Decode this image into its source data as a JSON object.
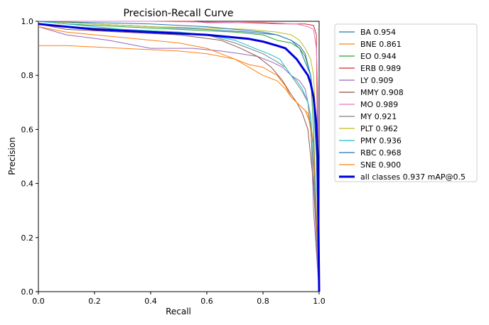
{
  "chart_data": {
    "type": "line",
    "title": "Precision-Recall Curve",
    "xlabel": "Recall",
    "ylabel": "Precision",
    "xlim": [
      0,
      1
    ],
    "ylim": [
      0,
      1
    ],
    "xticks": [
      "0.0",
      "0.2",
      "0.4",
      "0.6",
      "0.8",
      "1.0"
    ],
    "yticks": [
      "0.0",
      "0.2",
      "0.4",
      "0.6",
      "0.8",
      "1.0"
    ],
    "legend_position": "outside-right",
    "series": [
      {
        "name": "BA",
        "label": "BA 0.954",
        "color": "#1f77b4",
        "x": [
          0,
          0.05,
          0.2,
          0.4,
          0.6,
          0.75,
          0.85,
          0.9,
          0.93,
          0.95,
          0.97,
          0.98,
          0.99,
          1.0
        ],
        "y": [
          1.0,
          1.0,
          0.99,
          0.98,
          0.97,
          0.96,
          0.95,
          0.93,
          0.9,
          0.85,
          0.8,
          0.7,
          0.55,
          0.0
        ]
      },
      {
        "name": "BNE",
        "label": "BNE 0.861",
        "color": "#ff7f0e",
        "x": [
          0,
          0.02,
          0.1,
          0.3,
          0.5,
          0.6,
          0.65,
          0.7,
          0.75,
          0.8,
          0.85,
          0.88,
          0.9,
          0.92,
          0.95,
          0.97,
          0.98,
          1.0
        ],
        "y": [
          0.91,
          0.91,
          0.91,
          0.9,
          0.89,
          0.88,
          0.87,
          0.86,
          0.83,
          0.8,
          0.78,
          0.75,
          0.72,
          0.7,
          0.67,
          0.62,
          0.55,
          0.0
        ]
      },
      {
        "name": "EO",
        "label": "EO 0.944",
        "color": "#2ca02c",
        "x": [
          0,
          0.1,
          0.3,
          0.5,
          0.7,
          0.8,
          0.85,
          0.9,
          0.93,
          0.95,
          0.97,
          0.98,
          1.0
        ],
        "y": [
          1.0,
          0.99,
          0.98,
          0.97,
          0.96,
          0.95,
          0.93,
          0.92,
          0.9,
          0.87,
          0.8,
          0.6,
          0.0
        ]
      },
      {
        "name": "ERB",
        "label": "ERB 0.989",
        "color": "#d62728",
        "x": [
          0,
          0.3,
          0.55,
          0.6,
          0.8,
          0.9,
          0.95,
          0.98,
          0.99,
          1.0
        ],
        "y": [
          1.0,
          1.0,
          1.0,
          0.995,
          0.995,
          0.99,
          0.99,
          0.985,
          0.95,
          0.0
        ]
      },
      {
        "name": "LY",
        "label": "LY 0.909",
        "color": "#9467bd",
        "x": [
          0,
          0.1,
          0.25,
          0.4,
          0.55,
          0.65,
          0.72,
          0.78,
          0.83,
          0.87,
          0.9,
          0.93,
          0.95,
          0.97,
          0.98,
          1.0
        ],
        "y": [
          0.98,
          0.95,
          0.93,
          0.9,
          0.9,
          0.89,
          0.88,
          0.87,
          0.85,
          0.83,
          0.8,
          0.78,
          0.75,
          0.65,
          0.3,
          0.0
        ]
      },
      {
        "name": "MMY",
        "label": "MMY 0.908",
        "color": "#8c564b",
        "x": [
          0,
          0.1,
          0.3,
          0.5,
          0.65,
          0.72,
          0.78,
          0.83,
          0.87,
          0.9,
          0.92,
          0.94,
          0.96,
          0.97,
          0.98,
          1.0
        ],
        "y": [
          0.99,
          0.97,
          0.96,
          0.95,
          0.93,
          0.9,
          0.87,
          0.83,
          0.78,
          0.73,
          0.7,
          0.66,
          0.6,
          0.5,
          0.4,
          0.0
        ]
      },
      {
        "name": "MO",
        "label": "MO 0.989",
        "color": "#e377c2",
        "x": [
          0,
          0.4,
          0.7,
          0.85,
          0.92,
          0.96,
          0.98,
          0.99,
          0.995,
          1.0
        ],
        "y": [
          1.0,
          1.0,
          0.995,
          0.99,
          0.99,
          0.98,
          0.97,
          0.9,
          0.75,
          0.0
        ]
      },
      {
        "name": "MY",
        "label": "MY 0.921",
        "color": "#7f7f7f",
        "x": [
          0,
          0.1,
          0.3,
          0.5,
          0.6,
          0.7,
          0.75,
          0.8,
          0.85,
          0.88,
          0.9,
          0.92,
          0.94,
          0.96,
          0.97,
          0.98,
          1.0
        ],
        "y": [
          0.99,
          0.98,
          0.97,
          0.96,
          0.95,
          0.92,
          0.9,
          0.88,
          0.85,
          0.83,
          0.8,
          0.77,
          0.74,
          0.7,
          0.6,
          0.45,
          0.0
        ]
      },
      {
        "name": "PLT",
        "label": "PLT 0.962",
        "color": "#bcbd22",
        "x": [
          0,
          0.2,
          0.4,
          0.6,
          0.75,
          0.85,
          0.9,
          0.93,
          0.95,
          0.97,
          0.98,
          0.99,
          1.0
        ],
        "y": [
          1.0,
          0.99,
          0.98,
          0.975,
          0.97,
          0.96,
          0.95,
          0.93,
          0.9,
          0.86,
          0.8,
          0.6,
          0.0
        ]
      },
      {
        "name": "PMY",
        "label": "PMY 0.936",
        "color": "#17becf",
        "x": [
          0,
          0.1,
          0.3,
          0.5,
          0.6,
          0.7,
          0.77,
          0.82,
          0.86,
          0.88,
          0.9,
          0.92,
          0.94,
          0.96,
          0.97,
          0.98,
          1.0
        ],
        "y": [
          1.0,
          0.99,
          0.97,
          0.96,
          0.95,
          0.93,
          0.9,
          0.88,
          0.86,
          0.83,
          0.8,
          0.78,
          0.75,
          0.7,
          0.65,
          0.5,
          0.0
        ]
      },
      {
        "name": "RBC",
        "label": "RBC 0.968",
        "color": "#1f77b4",
        "x": [
          0,
          0.2,
          0.4,
          0.6,
          0.7,
          0.8,
          0.85,
          0.9,
          0.93,
          0.95,
          0.97,
          0.98,
          0.99,
          1.0
        ],
        "y": [
          1.0,
          0.995,
          0.99,
          0.98,
          0.97,
          0.96,
          0.95,
          0.93,
          0.91,
          0.88,
          0.8,
          0.7,
          0.5,
          0.0
        ]
      },
      {
        "name": "SNE",
        "label": "SNE 0.900",
        "color": "#ff7f0e",
        "x": [
          0,
          0.1,
          0.3,
          0.5,
          0.6,
          0.65,
          0.7,
          0.75,
          0.8,
          0.85,
          0.88,
          0.9,
          0.92,
          0.94,
          0.96,
          0.97,
          0.98,
          1.0
        ],
        "y": [
          0.98,
          0.96,
          0.94,
          0.92,
          0.9,
          0.88,
          0.86,
          0.84,
          0.83,
          0.8,
          0.76,
          0.72,
          0.7,
          0.68,
          0.66,
          0.6,
          0.55,
          0.0
        ]
      },
      {
        "name": "all classes",
        "label": "all classes 0.937 mAP@0.5",
        "color": "#0000dd",
        "bold": true,
        "x": [
          0,
          0.05,
          0.1,
          0.2,
          0.3,
          0.4,
          0.5,
          0.6,
          0.65,
          0.7,
          0.75,
          0.8,
          0.85,
          0.88,
          0.9,
          0.92,
          0.94,
          0.96,
          0.97,
          0.98,
          0.99,
          0.995,
          1.0
        ],
        "y": [
          0.99,
          0.985,
          0.98,
          0.97,
          0.965,
          0.96,
          0.955,
          0.95,
          0.945,
          0.94,
          0.935,
          0.925,
          0.91,
          0.9,
          0.88,
          0.86,
          0.83,
          0.8,
          0.77,
          0.72,
          0.62,
          0.5,
          0.0
        ]
      }
    ]
  }
}
